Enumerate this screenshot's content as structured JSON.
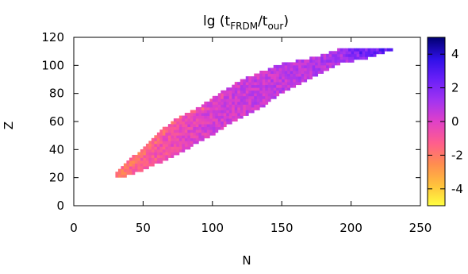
{
  "chart_data": {
    "type": "heatmap",
    "title": "lg (t",
    "title_sub1": "FRDM",
    "title_mid": "/t",
    "title_sub2": "our",
    "title_end": ")",
    "xlabel": "N",
    "ylabel": "Z",
    "xlim": [
      0,
      250
    ],
    "ylim": [
      0,
      120
    ],
    "xticks": [
      "0",
      "50",
      "100",
      "150",
      "200",
      "250"
    ],
    "yticks": [
      "0",
      "20",
      "40",
      "60",
      "80",
      "100",
      "120"
    ],
    "colorbar": {
      "range": [
        -5,
        5
      ],
      "ticks": [
        "4",
        "2",
        "0",
        "-2",
        "-4"
      ],
      "colors": [
        "#ffff40",
        "#ffc23c",
        "#ff8c50",
        "#ff5e8c",
        "#e040c8",
        "#a434f0",
        "#6a20f8",
        "#3010e8",
        "#000070"
      ]
    },
    "region": {
      "z_range": [
        20,
        110
      ],
      "n_range_at_z": [
        [
          20,
          29,
          36
        ],
        [
          24,
          32,
          48
        ],
        [
          30,
          38,
          62
        ],
        [
          40,
          50,
          82
        ],
        [
          50,
          60,
          100
        ],
        [
          60,
          72,
          116
        ],
        [
          70,
          92,
          136
        ],
        [
          80,
          106,
          150
        ],
        [
          90,
          124,
          170
        ],
        [
          100,
          150,
          190
        ],
        [
          105,
          175,
          215
        ],
        [
          110,
          190,
          228
        ]
      ]
    },
    "value_trend_by_N": [
      [
        30,
        -1.5
      ],
      [
        50,
        -1.2
      ],
      [
        70,
        -0.5
      ],
      [
        100,
        0.2
      ],
      [
        130,
        0.5
      ],
      [
        160,
        0.8
      ],
      [
        190,
        1.0
      ],
      [
        200,
        1.5
      ],
      [
        220,
        2.0
      ]
    ]
  }
}
